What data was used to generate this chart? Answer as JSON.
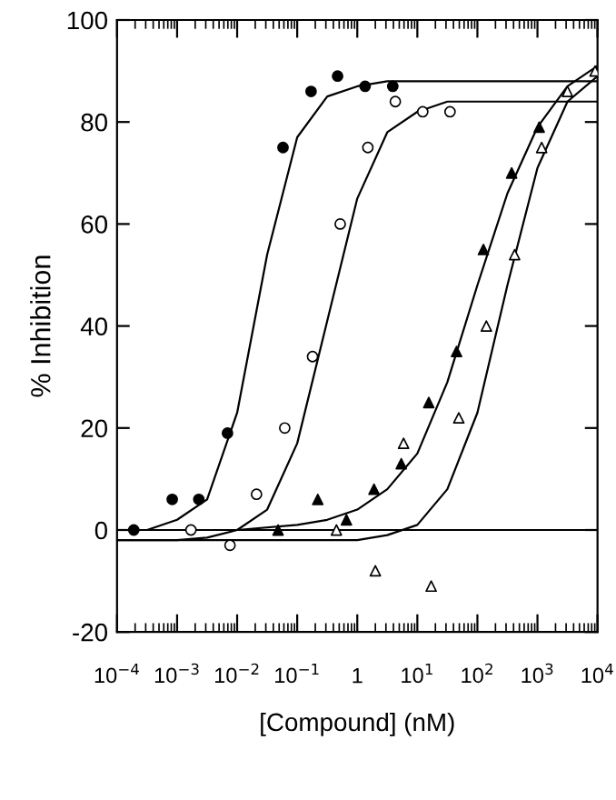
{
  "chart_data": {
    "type": "scatter",
    "xlabel": "[Compound] (nM)",
    "ylabel": "% Inhibition",
    "log": "x",
    "xlim": [
      0.0001,
      10000
    ],
    "ylim": [
      -20,
      100
    ],
    "xticks": [
      {
        "value": 0.0001,
        "label": "10$^{−4}$"
      },
      {
        "value": 0.001,
        "label": "10$^{−3}$"
      },
      {
        "value": 0.01,
        "label": "10$^{−2}$"
      },
      {
        "value": 0.1,
        "label": "10$^{−1}$"
      },
      1,
      {
        "value": 10,
        "label": "10$^{1}$"
      },
      {
        "value": 100,
        "label": "10$^{2}$"
      },
      {
        "value": 1000,
        "label": "10$^{3}$"
      },
      {
        "value": 10000,
        "label": "10$^{4}$"
      }
    ],
    "yticks": [
      -20,
      0,
      20,
      40,
      60,
      80,
      100
    ],
    "grid": false,
    "ref_lines": [
      {
        "axis": "y",
        "value": 0,
        "color": "#000000",
        "line_style": "solid"
      }
    ],
    "series": [
      {
        "marker": "circle",
        "color": "#000000",
        "x": [
          0.00019,
          0.00083,
          0.0023,
          0.0069,
          0.058,
          0.17,
          0.47,
          1.35,
          3.9
        ],
        "values": [
          0,
          6,
          6,
          19,
          75,
          86,
          89,
          87,
          87
        ]
      },
      {
        "marker": "circle",
        "color": "#ffffff",
        "x": [
          0.0017,
          0.0076,
          0.021,
          0.062,
          0.18,
          0.52,
          1.5,
          4.3,
          12.3,
          35
        ],
        "values": [
          0,
          -3,
          7,
          20,
          34,
          60,
          75,
          84,
          82,
          82
        ]
      },
      {
        "marker": "triangle",
        "color": "#000000",
        "x": [
          0.048,
          0.22,
          0.66,
          1.9,
          5.4,
          15.5,
          45,
          126,
          372,
          1070
        ],
        "values": [
          0,
          6,
          2,
          8,
          13,
          25,
          35,
          55,
          70,
          79
        ]
      },
      {
        "marker": "triangle",
        "color": "#ffffff",
        "x": [
          0.45,
          2.0,
          5.9,
          17,
          49,
          141,
          417,
          1175,
          3160,
          9120
        ],
        "values": [
          0,
          -8,
          17,
          -11,
          22,
          40,
          54,
          75,
          86,
          90
        ]
      },
      {
        "type": "line",
        "marker": "none",
        "color": "#000000",
        "x": [
          0.0001,
          0.000316,
          0.001,
          0.00316,
          0.01,
          0.0316,
          0.1,
          0.316,
          1,
          3.16,
          10,
          100,
          10000
        ],
        "values": [
          0,
          0,
          2,
          6,
          23,
          54,
          77,
          85,
          87,
          88,
          88,
          88,
          88
        ]
      },
      {
        "type": "line",
        "marker": "none",
        "color": "#000000",
        "x": [
          0.0001,
          0.001,
          0.00316,
          0.01,
          0.0316,
          0.1,
          0.316,
          1,
          3.16,
          10,
          31.6,
          100,
          10000
        ],
        "values": [
          -2,
          -2,
          -1.5,
          0,
          4,
          17,
          41,
          65,
          78,
          82,
          84,
          84,
          84
        ]
      },
      {
        "type": "line",
        "marker": "none",
        "color": "#000000",
        "x": [
          0.0001,
          0.001,
          0.01,
          0.1,
          0.316,
          1,
          3.16,
          10,
          31.6,
          100,
          316,
          1000,
          3160,
          10000
        ],
        "values": [
          0,
          0,
          0,
          1,
          2,
          4,
          8,
          15,
          29,
          48,
          66,
          79,
          87,
          91
        ]
      },
      {
        "type": "line",
        "marker": "none",
        "color": "#000000",
        "x": [
          0.0001,
          0.01,
          1,
          3.16,
          10,
          31.6,
          100,
          316,
          1000,
          3160,
          10000
        ],
        "values": [
          -2,
          -2,
          -2,
          -1,
          1,
          8,
          23,
          48,
          71,
          84,
          89
        ]
      }
    ]
  }
}
